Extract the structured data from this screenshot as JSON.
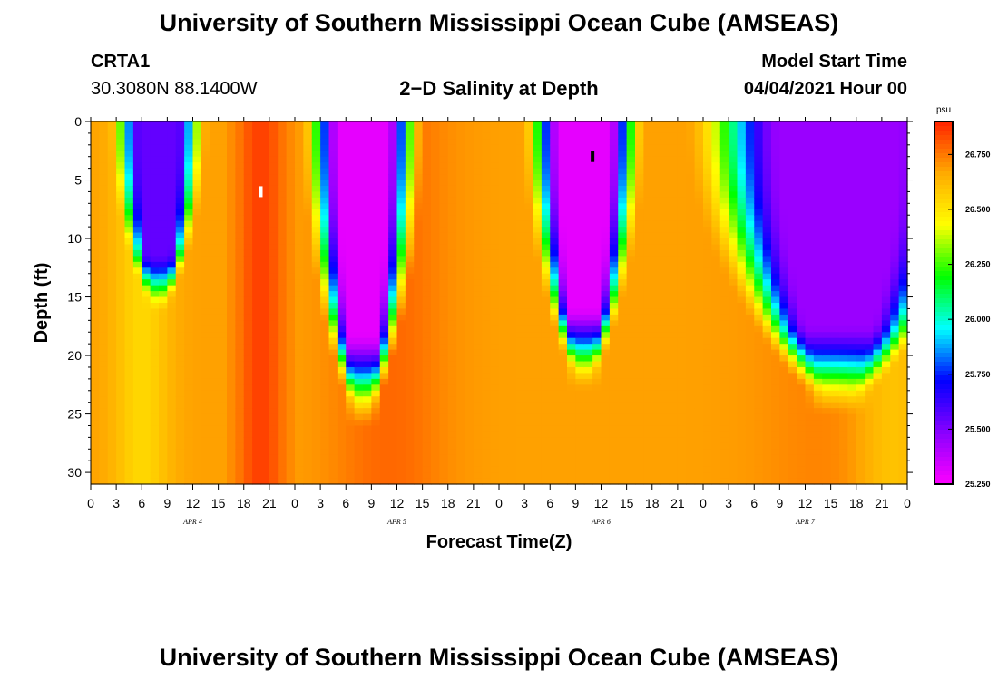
{
  "header": {
    "title": "University of Southern Mississippi Ocean Cube (AMSEAS)",
    "footer_title": "University of Southern Mississippi Ocean Cube (AMSEAS)",
    "station": "CRTA1",
    "coords": "30.3080N  88.1400W",
    "plot_title": "2−D Salinity at Depth",
    "model_start_label": "Model Start Time",
    "model_start_value": "04/04/2021 Hour 00"
  },
  "chart_data": {
    "type": "heatmap",
    "title": "2−D Salinity at Depth",
    "xlabel": "Forecast Time(Z)",
    "ylabel": "Depth (ft)",
    "x_range_hours": [
      0,
      96
    ],
    "y_range_ft": [
      0,
      31
    ],
    "y_ticks": [
      0,
      5,
      10,
      15,
      20,
      25,
      30
    ],
    "x_tick_labels": [
      "0",
      "3",
      "6",
      "9",
      "12",
      "15",
      "18",
      "21",
      "0",
      "3",
      "6",
      "9",
      "12",
      "15",
      "18",
      "21",
      "0",
      "3",
      "6",
      "9",
      "12",
      "15",
      "18",
      "21",
      "0",
      "3",
      "6",
      "9",
      "12",
      "15",
      "18",
      "21",
      "0"
    ],
    "day_labels": [
      {
        "label": "APR  4",
        "hour": 12
      },
      {
        "label": "APR  5",
        "hour": 36
      },
      {
        "label": "APR  6",
        "hour": 60
      },
      {
        "label": "APR  7",
        "hour": 84
      }
    ],
    "colorbar": {
      "unit": "psu",
      "min": 25.25,
      "max": 26.9,
      "tick_values": [
        "26.750",
        "26.500",
        "26.250",
        "26.000",
        "25.750",
        "25.500",
        "25.250"
      ],
      "colors": [
        "#ff00ff",
        "#8800ff",
        "#0000ff",
        "#00ffff",
        "#00ff00",
        "#ffff00",
        "#ffaa00",
        "#ff2200"
      ]
    },
    "fresh_lenses": [
      {
        "center_hour": 8,
        "shallow_width_hours": 3.5,
        "bottom_depth_ft": 15,
        "min_psu": 25.55
      },
      {
        "center_hour": 32,
        "shallow_width_hours": 4.5,
        "bottom_depth_ft": 24,
        "min_psu": 25.3
      },
      {
        "center_hour": 58,
        "shallow_width_hours": 4.5,
        "bottom_depth_ft": 21,
        "min_psu": 25.3
      },
      {
        "center_hour": 88,
        "shallow_width_hours": 12,
        "bottom_depth_ft": 23,
        "min_psu": 25.45
      }
    ],
    "saline_core": {
      "hours": [
        19,
        21
      ],
      "psu": 26.85
    },
    "markers": [
      {
        "hour": 20,
        "depth_ft": 6,
        "color": "#ffffff"
      },
      {
        "hour": 59,
        "depth_ft": 3,
        "color": "#000000"
      }
    ]
  }
}
